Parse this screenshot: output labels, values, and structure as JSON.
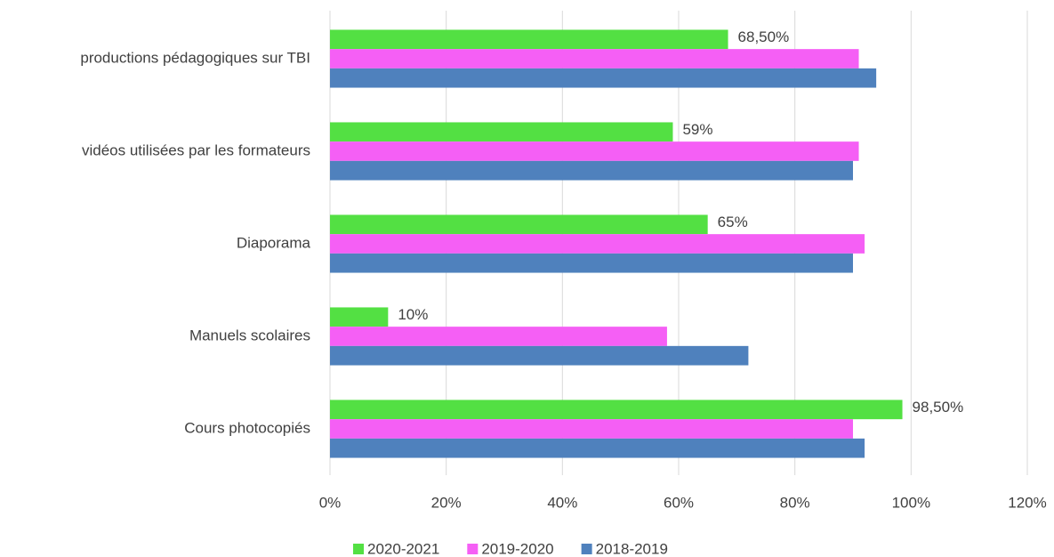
{
  "chart_data": {
    "type": "hbar",
    "categories": [
      "productions pédagogiques sur TBI",
      "vidéos utilisées par les formateurs",
      "Diaporama",
      "Manuels scolaires",
      "Cours photocopiés"
    ],
    "series": [
      {
        "name": "2020-2021",
        "color": "#53e043",
        "values": [
          68.5,
          59,
          65,
          10,
          98.5
        ],
        "value_labels": [
          "68,50%",
          "59%",
          "65%",
          "10%",
          "98,50%"
        ]
      },
      {
        "name": "2019-2020",
        "color": "#f55ff5",
        "values": [
          91,
          91,
          92,
          58,
          90
        ]
      },
      {
        "name": "2018-2019",
        "color": "#4f81bd",
        "values": [
          94,
          90,
          90,
          72,
          92
        ]
      }
    ],
    "xlim": [
      0,
      120
    ],
    "xticks": [
      {
        "value": 0,
        "label": "0%"
      },
      {
        "value": 20,
        "label": "20%"
      },
      {
        "value": 40,
        "label": "40%"
      },
      {
        "value": 60,
        "label": "60%"
      },
      {
        "value": 80,
        "label": "80%"
      },
      {
        "value": 100,
        "label": "100%"
      },
      {
        "value": 120,
        "label": "120%"
      }
    ],
    "grid": true,
    "legend": "bottom"
  }
}
